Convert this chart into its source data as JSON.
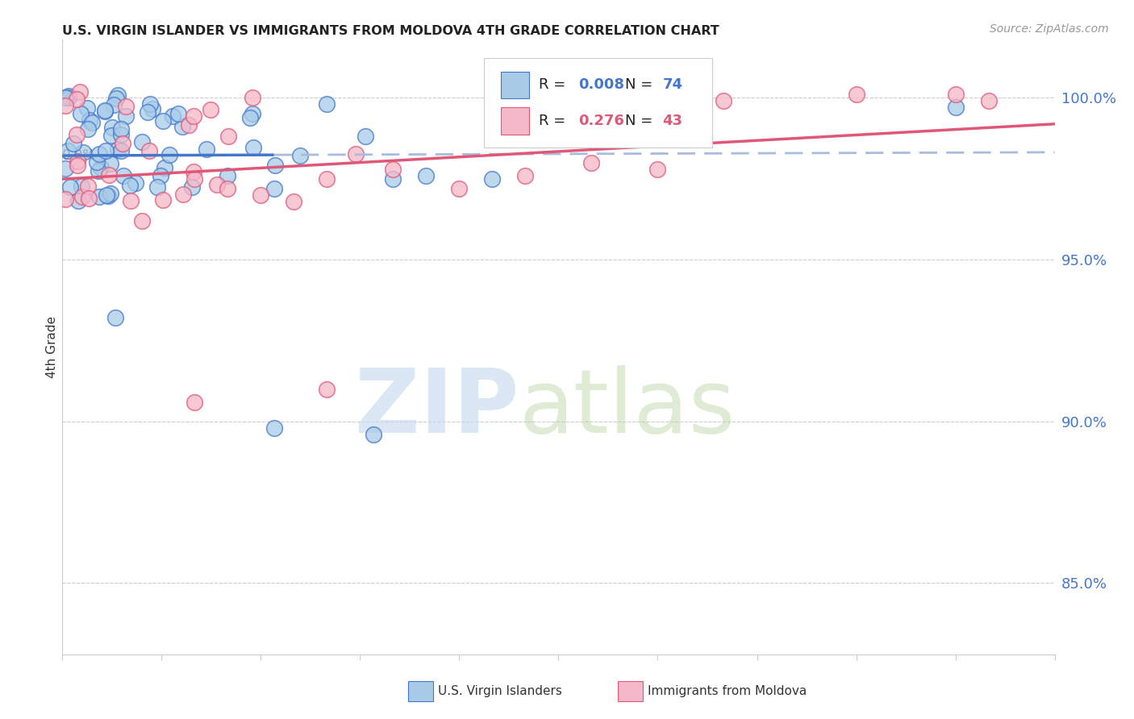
{
  "title": "U.S. VIRGIN ISLANDER VS IMMIGRANTS FROM MOLDOVA 4TH GRADE CORRELATION CHART",
  "source": "Source: ZipAtlas.com",
  "ylabel": "4th Grade",
  "ytick_values": [
    0.85,
    0.9,
    0.95,
    1.0
  ],
  "xmin": 0.0,
  "xmax": 0.15,
  "ymin": 0.828,
  "ymax": 1.018,
  "color_blue": "#a8cce8",
  "color_pink": "#f5b8c8",
  "color_blue_dark": "#4477cc",
  "color_pink_dark": "#e05878",
  "color_blue_text": "#4477cc",
  "color_pink_text": "#e05878",
  "dashed_color": "#aabbdd",
  "grid_color": "#cccccc",
  "watermark_zip_color": "#c5d8f0",
  "watermark_atlas_color": "#b8d4a0"
}
